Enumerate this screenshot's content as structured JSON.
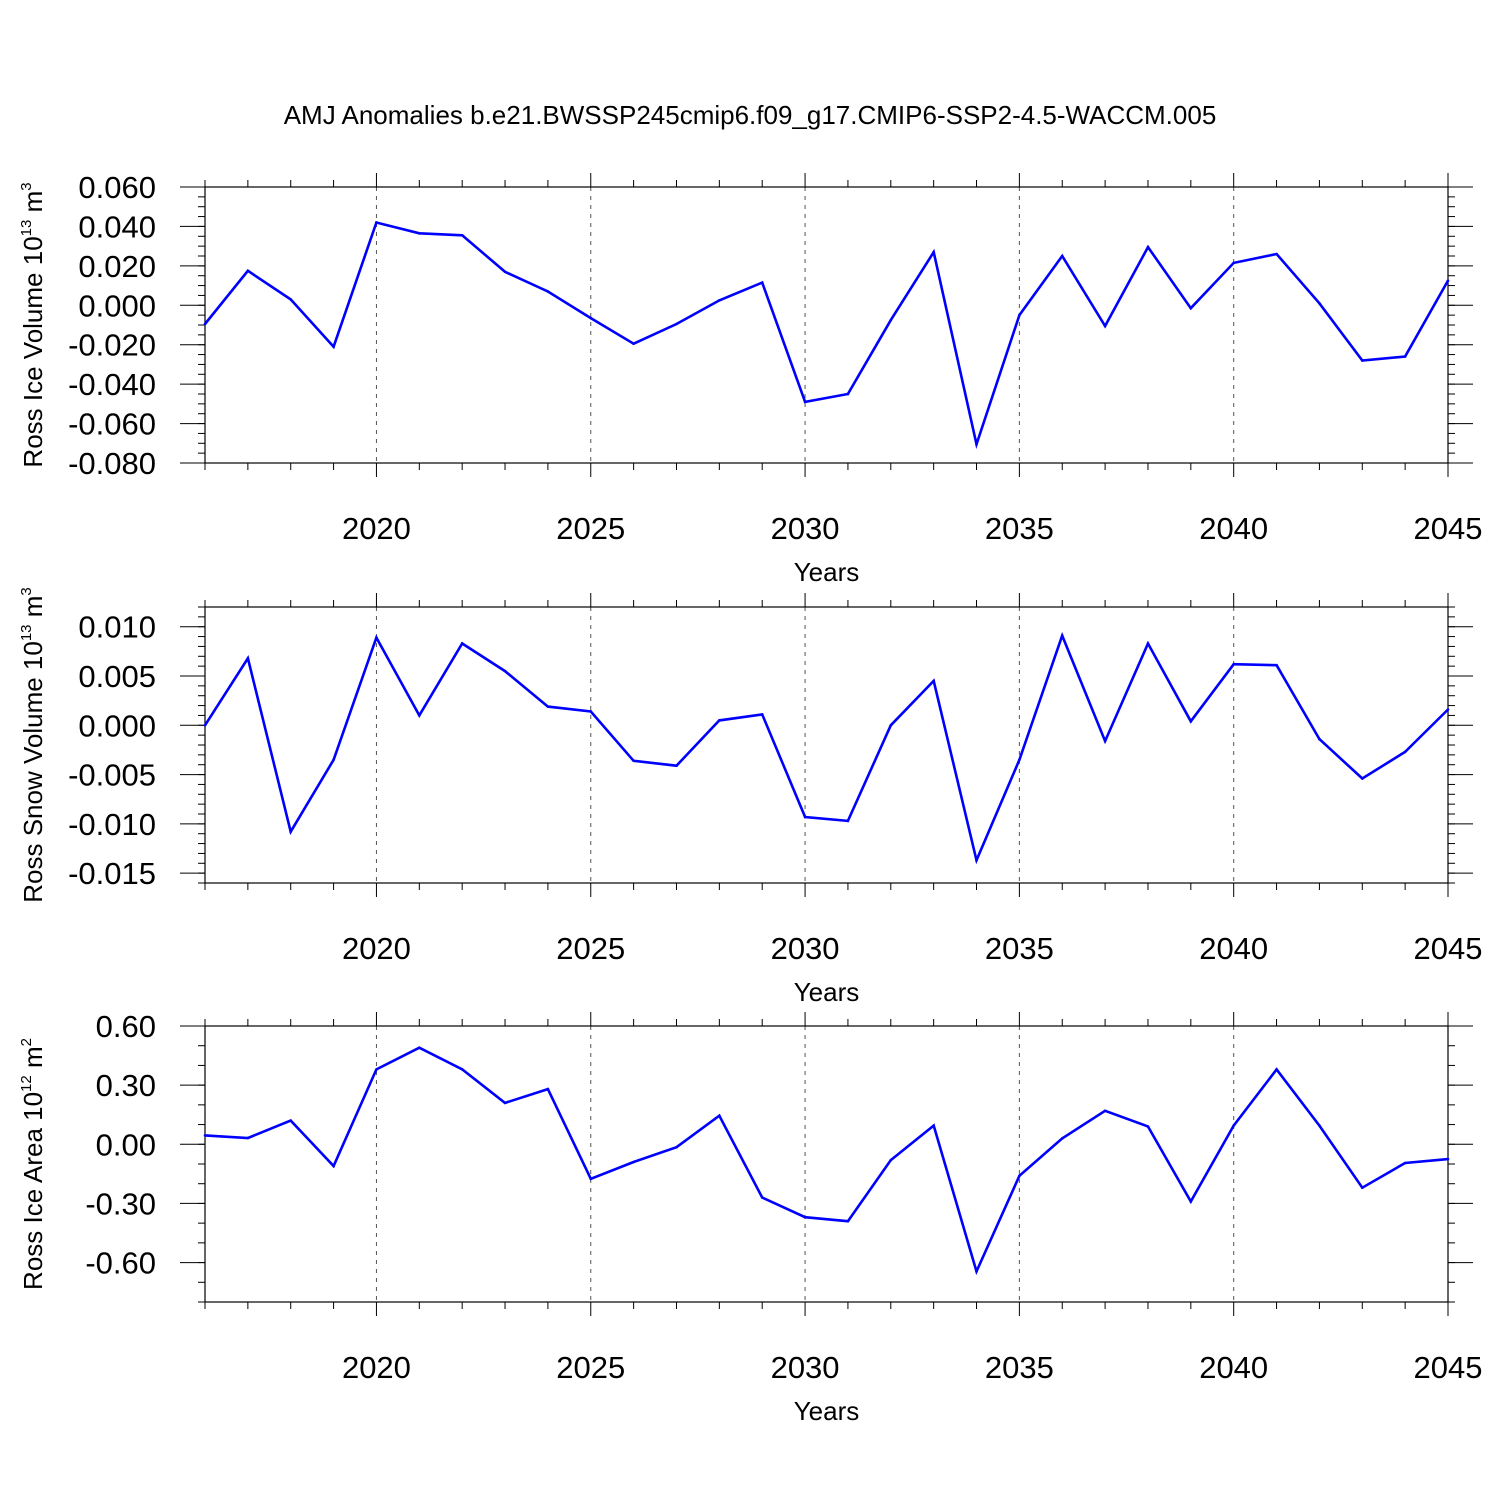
{
  "title": "AMJ Anomalies b.e21.BWSSP245cmip6.f09_g17.CMIP6-SSP2-4.5-WACCM.005",
  "line_color": "#0000ff",
  "chart_data": [
    {
      "type": "line",
      "ylabel_main": "Ross Ice Volume 10",
      "ylabel_exp": "13",
      "ylabel_unit": " m",
      "ylabel_unit_exp": "3",
      "xlabel": "Years",
      "xlim": [
        2016,
        2045
      ],
      "ylim": [
        -0.08,
        0.06
      ],
      "x_ticks": [
        2020,
        2025,
        2030,
        2035,
        2040,
        2045
      ],
      "x_tick_labels": [
        "2020",
        "2025",
        "2030",
        "2035",
        "2040",
        "2045"
      ],
      "y_ticks": [
        -0.08,
        -0.06,
        -0.04,
        -0.02,
        0.0,
        0.02,
        0.04,
        0.06
      ],
      "y_tick_labels": [
        "-0.080",
        "-0.060",
        "-0.040",
        "-0.020",
        "0.000",
        "0.020",
        "0.040",
        "0.060"
      ],
      "y_minor_step": 0.005,
      "grid": "vertical dashed at major x ticks",
      "x": [
        2016,
        2017,
        2018,
        2019,
        2020,
        2021,
        2022,
        2023,
        2024,
        2025,
        2026,
        2027,
        2028,
        2029,
        2030,
        2031,
        2032,
        2033,
        2034,
        2035,
        2036,
        2037,
        2038,
        2039,
        2040,
        2041,
        2042,
        2043,
        2044,
        2045
      ],
      "values": [
        -0.0095,
        0.0175,
        0.003,
        -0.021,
        0.042,
        0.0365,
        0.0355,
        0.017,
        0.007,
        -0.0065,
        -0.0195,
        -0.0095,
        0.0025,
        0.0115,
        -0.049,
        -0.045,
        -0.0075,
        0.027,
        -0.0705,
        -0.005,
        0.025,
        -0.0105,
        0.0295,
        -0.0015,
        0.0215,
        0.026,
        0.001,
        -0.028,
        -0.026,
        0.0125
      ]
    },
    {
      "type": "line",
      "ylabel_main": "Ross Snow Volume 10",
      "ylabel_exp": "13",
      "ylabel_unit": " m",
      "ylabel_unit_exp": "3",
      "xlabel": "Years",
      "xlim": [
        2016,
        2045
      ],
      "ylim": [
        -0.016,
        0.012
      ],
      "x_ticks": [
        2020,
        2025,
        2030,
        2035,
        2040,
        2045
      ],
      "x_tick_labels": [
        "2020",
        "2025",
        "2030",
        "2035",
        "2040",
        "2045"
      ],
      "y_ticks": [
        -0.015,
        -0.01,
        -0.005,
        0.0,
        0.005,
        0.01
      ],
      "y_tick_labels": [
        "-0.015",
        "-0.010",
        "-0.005",
        "0.000",
        "0.005",
        "0.010"
      ],
      "y_minor_step": 0.001,
      "grid": "vertical dashed at major x ticks",
      "x": [
        2016,
        2017,
        2018,
        2019,
        2020,
        2021,
        2022,
        2023,
        2024,
        2025,
        2026,
        2027,
        2028,
        2029,
        2030,
        2031,
        2032,
        2033,
        2034,
        2035,
        2036,
        2037,
        2038,
        2039,
        2040,
        2041,
        2042,
        2043,
        2044,
        2045
      ],
      "values": [
        0.0,
        0.0068,
        -0.0108,
        -0.0035,
        0.0089,
        0.001,
        0.0083,
        0.0055,
        0.0019,
        0.0014,
        -0.0036,
        -0.0041,
        0.0005,
        0.0011,
        -0.0093,
        -0.0097,
        0.0,
        0.0045,
        -0.0137,
        -0.0035,
        0.0091,
        -0.0016,
        0.0083,
        0.0004,
        0.0062,
        0.0061,
        -0.0014,
        -0.0054,
        -0.0027,
        0.0016
      ]
    },
    {
      "type": "line",
      "ylabel_main": "Ross Ice Area 10",
      "ylabel_exp": "12",
      "ylabel_unit": " m",
      "ylabel_unit_exp": "2",
      "xlabel": "Years",
      "xlim": [
        2016,
        2045
      ],
      "ylim": [
        -0.8,
        0.6
      ],
      "x_ticks": [
        2020,
        2025,
        2030,
        2035,
        2040,
        2045
      ],
      "x_tick_labels": [
        "2020",
        "2025",
        "2030",
        "2035",
        "2040",
        "2045"
      ],
      "y_ticks": [
        -0.6,
        -0.3,
        0.0,
        0.3,
        0.6
      ],
      "y_tick_labels": [
        "-0.60",
        "-0.30",
        "0.00",
        "0.30",
        "0.60"
      ],
      "y_minor_step": 0.1,
      "grid": "vertical dashed at major x ticks",
      "x": [
        2016,
        2017,
        2018,
        2019,
        2020,
        2021,
        2022,
        2023,
        2024,
        2025,
        2026,
        2027,
        2028,
        2029,
        2030,
        2031,
        2032,
        2033,
        2034,
        2035,
        2036,
        2037,
        2038,
        2039,
        2040,
        2041,
        2042,
        2043,
        2044,
        2045
      ],
      "values": [
        0.045,
        0.032,
        0.12,
        -0.11,
        0.38,
        0.49,
        0.38,
        0.21,
        0.28,
        -0.175,
        -0.09,
        -0.015,
        0.145,
        -0.27,
        -0.37,
        -0.39,
        -0.08,
        0.095,
        -0.645,
        -0.16,
        0.03,
        0.17,
        0.09,
        -0.29,
        0.095,
        0.38,
        0.095,
        -0.22,
        -0.095,
        -0.075
      ]
    }
  ]
}
